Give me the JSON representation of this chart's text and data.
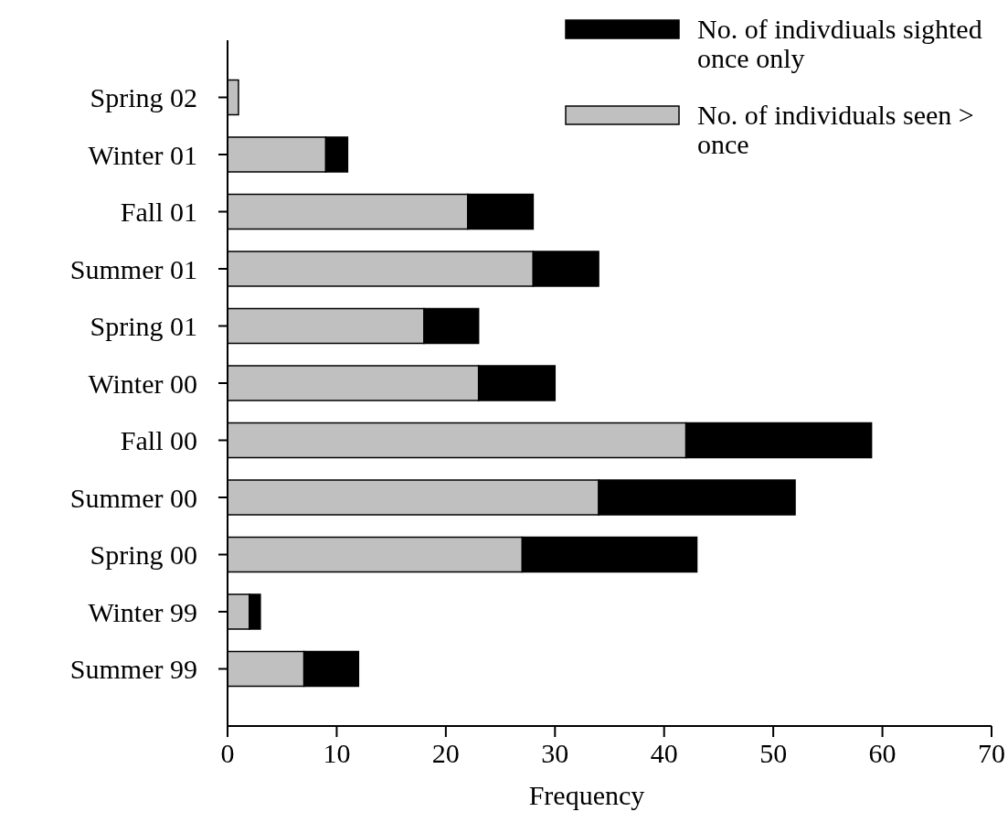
{
  "chart_data": {
    "type": "bar",
    "orientation": "horizontal",
    "stacked": true,
    "xlabel": "Frequency",
    "categories": [
      "Spring 02",
      "Winter 01",
      "Fall 01",
      "Summer 01",
      "Spring 01",
      "Winter 00",
      "Fall 00",
      "Summer 00",
      "Spring 00",
      "Winter 99",
      "Summer 99"
    ],
    "series": [
      {
        "name": "No. of individuals seen > once",
        "color": "#c0c0c0",
        "values": [
          1,
          9,
          22,
          28,
          18,
          23,
          42,
          34,
          27,
          2,
          7
        ]
      },
      {
        "name": "No. of indivdiuals sighted once only",
        "color": "#000000",
        "values": [
          0,
          2,
          6,
          6,
          5,
          7,
          17,
          18,
          16,
          1,
          5
        ]
      }
    ],
    "xlim": [
      0,
      70
    ],
    "xticks": [
      0,
      10,
      20,
      30,
      40,
      50,
      60,
      70
    ],
    "legend": "top right",
    "grid": false
  }
}
